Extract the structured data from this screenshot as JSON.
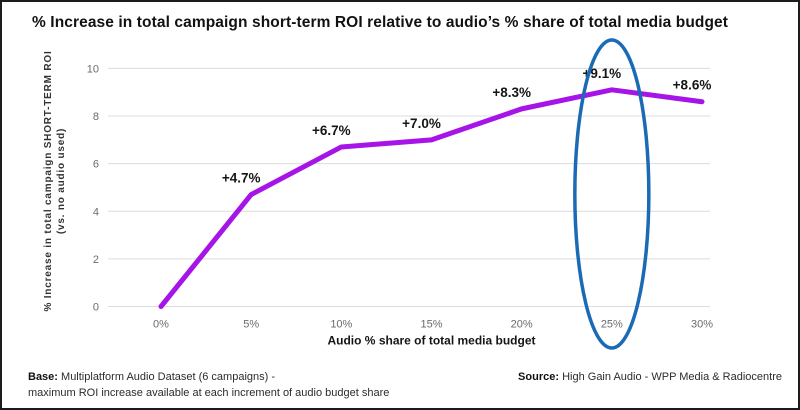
{
  "title": "% Increase in total campaign short-term ROI relative to audio’s % share of total media budget",
  "chart_data": {
    "type": "line",
    "x_categories": [
      "0%",
      "5%",
      "10%",
      "15%",
      "20%",
      "25%",
      "30%"
    ],
    "values": [
      0,
      4.7,
      6.7,
      7.0,
      8.3,
      9.1,
      8.6
    ],
    "point_labels": [
      "",
      "+4.7%",
      "+6.7%",
      "+7.0%",
      "+8.3%",
      "+9.1%",
      "+8.6%"
    ],
    "xlabel": "Audio % share of total media budget",
    "ylabel": "% Increase in total campaign SHORT-TERM ROI",
    "ylabel_sub": "(vs. no audio used)",
    "ylim": [
      0,
      10
    ],
    "yticks": [
      0,
      2,
      4,
      6,
      8,
      10
    ],
    "grid": true,
    "legend": "none",
    "line_color": "#A614E8",
    "highlight_category": "25%",
    "highlight_shape": "ellipse",
    "highlight_color": "#1A6AB5"
  },
  "footer": {
    "base_label": "Base:",
    "base_text": "Multiplatform Audio Dataset (6 campaigns) -",
    "base_line2": "maximum ROI increase available at each increment of audio budget share",
    "source_label": "Source:",
    "source_text": "High Gain Audio - WPP Media & Radiocentre"
  }
}
